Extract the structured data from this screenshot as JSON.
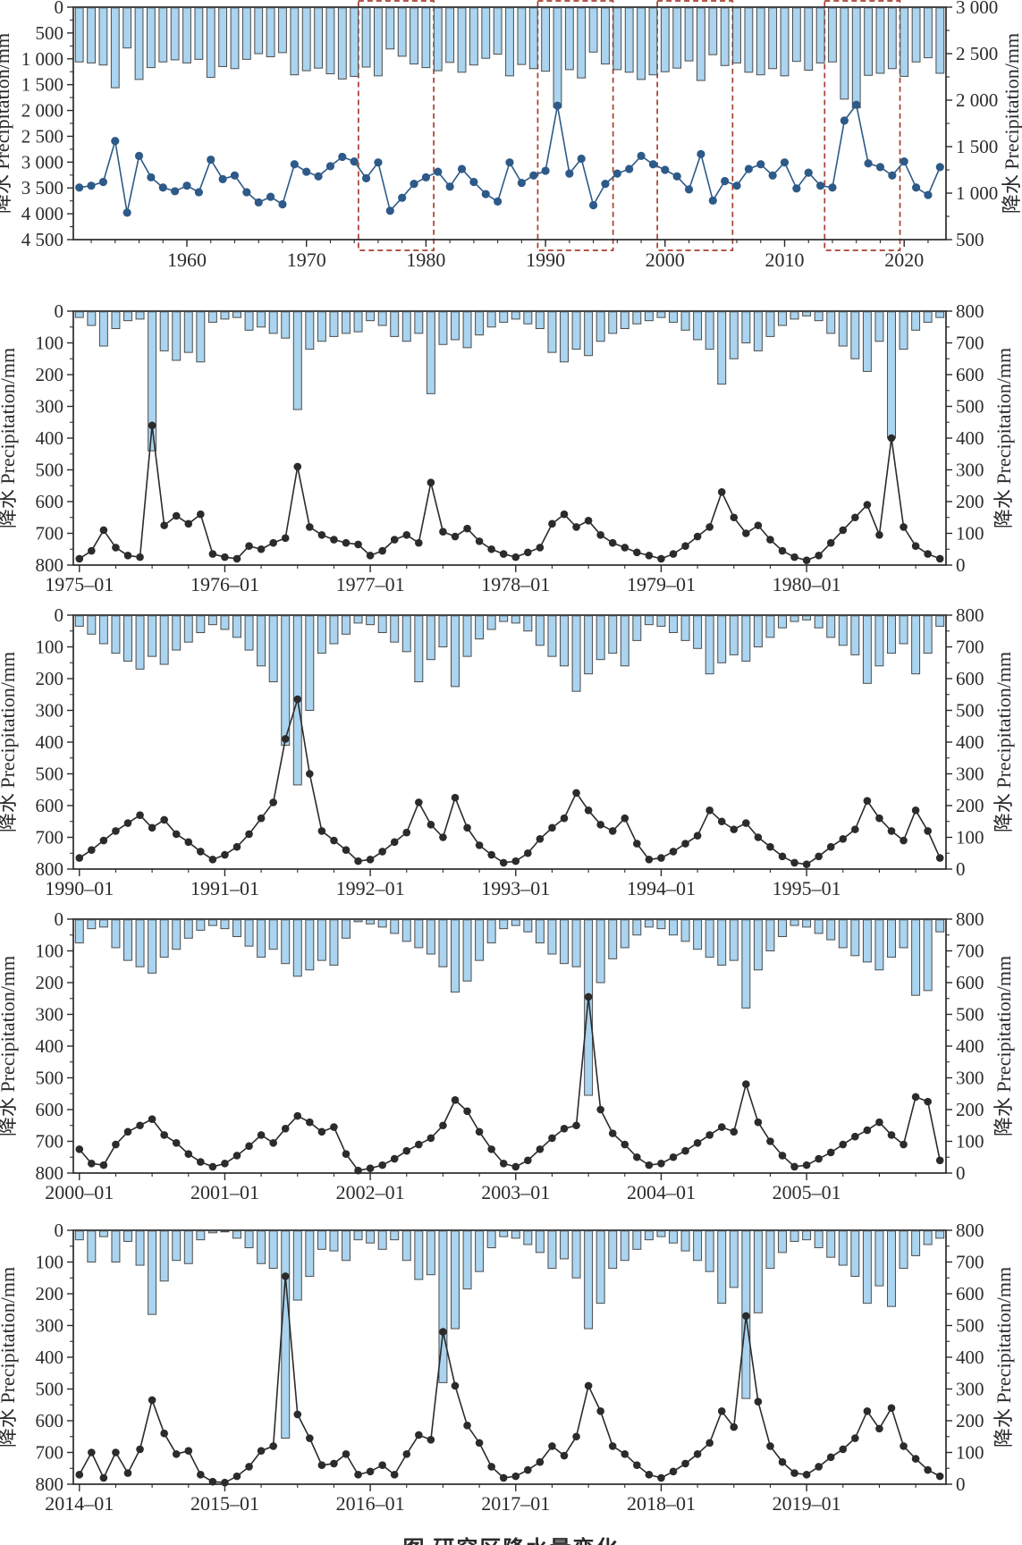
{
  "caption": {
    "text": "图 研究区降水量变化"
  },
  "style": {
    "background": "#ffffff",
    "bar_fill": "#aad4ef",
    "bar_stroke": "#4d4d4d",
    "annual_line": "#2d5a88",
    "monthly_line": "#2b2b2b",
    "highlight_box": "#a6402f",
    "axis": "#2b2b2b",
    "text": "#2b2b2b"
  },
  "chart_data": [
    {
      "id": "chart-annual",
      "kind": "annual",
      "type": "bar+line (same annual precipitation series on dual axes)",
      "start_year": 1951,
      "end_year": 2023,
      "values": [
        1060,
        1080,
        1120,
        1560,
        790,
        1400,
        1170,
        1060,
        1020,
        1080,
        1010,
        1360,
        1150,
        1190,
        1010,
        900,
        960,
        880,
        1310,
        1230,
        1180,
        1290,
        1390,
        1340,
        1160,
        1330,
        810,
        950,
        1100,
        1170,
        1230,
        1070,
        1260,
        1120,
        990,
        910,
        1330,
        1110,
        1190,
        1240,
        1940,
        1210,
        1370,
        870,
        1100,
        1210,
        1260,
        1400,
        1310,
        1250,
        1180,
        1040,
        1420,
        920,
        1130,
        1080,
        1260,
        1310,
        1190,
        1330,
        1050,
        1220,
        1080,
        1060,
        1780,
        1950,
        1320,
        1280,
        1190,
        1340,
        1060,
        980,
        1280
      ],
      "left_axis": {
        "label": "降水 Precipitation/mm",
        "max": 4500,
        "inverted": true,
        "minor_step": 250,
        "tick_values": [
          0,
          500,
          1000,
          1500,
          2000,
          2500,
          3000,
          3500,
          4000,
          4500
        ],
        "tick_labels": [
          "0",
          "500",
          "1 000",
          "1 500",
          "2 000",
          "2 500",
          "3 000",
          "3 500",
          "4 000",
          "4 500"
        ]
      },
      "right_axis": {
        "label": "降水 Precipitation/mm",
        "clipped_at_edge": true,
        "top": 3000,
        "bottom": 500,
        "minor_step": 250,
        "tick_values": [
          3000,
          2500,
          2000,
          1500,
          1000,
          500
        ],
        "tick_labels": [
          "3 000",
          "2 500",
          "2 000",
          "1 500",
          "1 000",
          "500"
        ]
      },
      "x_ticks": [
        {
          "year": 1960,
          "label": "1960"
        },
        {
          "year": 1970,
          "label": "1970"
        },
        {
          "year": 1980,
          "label": "1980"
        },
        {
          "year": 1990,
          "label": "1990"
        },
        {
          "year": 2000,
          "label": "2000"
        },
        {
          "year": 2010,
          "label": "2010"
        },
        {
          "year": 2020,
          "label": "2020"
        }
      ],
      "highlight_year_ranges": [
        [
          1975,
          1980
        ],
        [
          1990,
          1995
        ],
        [
          2000,
          2005
        ],
        [
          2014,
          2019
        ]
      ]
    },
    {
      "id": "chart-1975-1980",
      "kind": "monthly",
      "type": "bar+line (same monthly precipitation series on dual axes)",
      "start_year": 1975,
      "values": [
        20,
        45,
        110,
        55,
        30,
        25,
        440,
        125,
        155,
        130,
        160,
        35,
        25,
        20,
        60,
        50,
        70,
        85,
        310,
        120,
        95,
        80,
        70,
        65,
        30,
        45,
        80,
        95,
        70,
        260,
        105,
        90,
        115,
        75,
        50,
        35,
        25,
        40,
        55,
        130,
        160,
        120,
        140,
        95,
        70,
        55,
        40,
        30,
        20,
        35,
        60,
        90,
        120,
        230,
        150,
        100,
        125,
        80,
        45,
        25,
        15,
        30,
        70,
        110,
        150,
        190,
        95,
        400,
        120,
        60,
        35,
        20
      ],
      "left_axis": {
        "label": "降水 Precipitation/mm",
        "max": 800,
        "inverted": true,
        "minor_step": 50,
        "tick_values": [
          0,
          100,
          200,
          300,
          400,
          500,
          600,
          700,
          800
        ],
        "tick_labels": [
          "0",
          "100",
          "200",
          "300",
          "400",
          "500",
          "600",
          "700",
          "800"
        ]
      },
      "right_axis": {
        "label": "降水 Precipitation/mm",
        "top": 800,
        "bottom": 0,
        "minor_step": 50,
        "tick_values": [
          800,
          700,
          600,
          500,
          400,
          300,
          200,
          100,
          0
        ],
        "tick_labels": [
          "800",
          "700",
          "600",
          "500",
          "400",
          "300",
          "200",
          "100",
          "0"
        ]
      },
      "x_tick_labels": [
        "1975–01",
        "1976–01",
        "1977–01",
        "1978–01",
        "1979–01",
        "1980–01"
      ]
    },
    {
      "id": "chart-1990-1995",
      "kind": "monthly",
      "type": "bar+line (same monthly precipitation series on dual axes)",
      "start_year": 1990,
      "values": [
        35,
        60,
        90,
        120,
        145,
        170,
        130,
        155,
        110,
        85,
        55,
        30,
        45,
        70,
        110,
        160,
        210,
        410,
        535,
        300,
        120,
        90,
        60,
        25,
        30,
        55,
        85,
        115,
        210,
        140,
        100,
        225,
        130,
        75,
        45,
        20,
        25,
        50,
        95,
        130,
        160,
        240,
        185,
        140,
        120,
        160,
        80,
        30,
        35,
        55,
        80,
        105,
        185,
        150,
        125,
        145,
        100,
        70,
        40,
        20,
        15,
        40,
        70,
        95,
        125,
        215,
        160,
        120,
        90,
        185,
        120,
        35
      ],
      "left_axis": {
        "label": "降水 Precipitation/mm",
        "max": 800,
        "inverted": true,
        "minor_step": 50,
        "tick_values": [
          0,
          100,
          200,
          300,
          400,
          500,
          600,
          700,
          800
        ],
        "tick_labels": [
          "0",
          "100",
          "200",
          "300",
          "400",
          "500",
          "600",
          "700",
          "800"
        ]
      },
      "right_axis": {
        "label": "降水 Precipitation/mm",
        "top": 800,
        "bottom": 0,
        "minor_step": 50,
        "tick_values": [
          800,
          700,
          600,
          500,
          400,
          300,
          200,
          100,
          0
        ],
        "tick_labels": [
          "800",
          "700",
          "600",
          "500",
          "400",
          "300",
          "200",
          "100",
          "0"
        ]
      },
      "x_tick_labels": [
        "1990–01",
        "1991–01",
        "1992–01",
        "1993–01",
        "1994–01",
        "1995–01"
      ]
    },
    {
      "id": "chart-2000-2005",
      "kind": "monthly",
      "type": "bar+line (same monthly precipitation series on dual axes)",
      "start_year": 2000,
      "values": [
        75,
        30,
        25,
        90,
        130,
        150,
        170,
        120,
        95,
        60,
        35,
        20,
        30,
        55,
        85,
        120,
        95,
        140,
        180,
        160,
        130,
        145,
        60,
        8,
        15,
        25,
        45,
        70,
        90,
        110,
        150,
        230,
        195,
        130,
        75,
        30,
        20,
        40,
        75,
        110,
        140,
        150,
        555,
        200,
        125,
        90,
        50,
        25,
        30,
        50,
        70,
        95,
        120,
        145,
        130,
        280,
        160,
        100,
        55,
        20,
        25,
        45,
        65,
        90,
        115,
        135,
        160,
        120,
        90,
        240,
        225,
        40
      ],
      "left_axis": {
        "label": "降水 Precipitation/mm",
        "max": 800,
        "inverted": true,
        "minor_step": 50,
        "tick_values": [
          0,
          100,
          200,
          300,
          400,
          500,
          600,
          700,
          800
        ],
        "tick_labels": [
          "0",
          "100",
          "200",
          "300",
          "400",
          "500",
          "600",
          "700",
          "800"
        ]
      },
      "right_axis": {
        "label": "降水 Precipitation/mm",
        "top": 800,
        "bottom": 0,
        "minor_step": 50,
        "tick_values": [
          800,
          700,
          600,
          500,
          400,
          300,
          200,
          100,
          0
        ],
        "tick_labels": [
          "800",
          "700",
          "600",
          "500",
          "400",
          "300",
          "200",
          "100",
          "0"
        ]
      },
      "x_tick_labels": [
        "2000–01",
        "2001–01",
        "2002–01",
        "2003–01",
        "2004–01",
        "2005–01"
      ]
    },
    {
      "id": "chart-2014-2019",
      "kind": "monthly",
      "type": "bar+line (same monthly precipitation series on dual axes)",
      "start_year": 2014,
      "values": [
        30,
        100,
        20,
        100,
        35,
        110,
        265,
        160,
        95,
        105,
        30,
        8,
        5,
        25,
        55,
        105,
        120,
        655,
        220,
        145,
        60,
        65,
        95,
        30,
        40,
        60,
        30,
        95,
        155,
        140,
        480,
        310,
        185,
        130,
        55,
        20,
        25,
        45,
        70,
        120,
        90,
        150,
        310,
        230,
        120,
        95,
        60,
        30,
        20,
        40,
        65,
        95,
        130,
        230,
        180,
        530,
        260,
        120,
        70,
        35,
        30,
        55,
        85,
        110,
        145,
        230,
        175,
        240,
        120,
        80,
        45,
        25
      ],
      "left_axis": {
        "label": "降水 Precipitation/mm",
        "max": 800,
        "inverted": true,
        "minor_step": 50,
        "tick_values": [
          0,
          100,
          200,
          300,
          400,
          500,
          600,
          700,
          800
        ],
        "tick_labels": [
          "0",
          "100",
          "200",
          "300",
          "400",
          "500",
          "600",
          "700",
          "800"
        ]
      },
      "right_axis": {
        "label": "降水 Precipitation/mm",
        "top": 800,
        "bottom": 0,
        "minor_step": 50,
        "tick_values": [
          800,
          700,
          600,
          500,
          400,
          300,
          200,
          100,
          0
        ],
        "tick_labels": [
          "800",
          "700",
          "600",
          "500",
          "400",
          "300",
          "200",
          "100",
          "0"
        ]
      },
      "x_tick_labels": [
        "2014–01",
        "2015–01",
        "2016–01",
        "2017–01",
        "2018–01",
        "2019–01"
      ]
    }
  ]
}
